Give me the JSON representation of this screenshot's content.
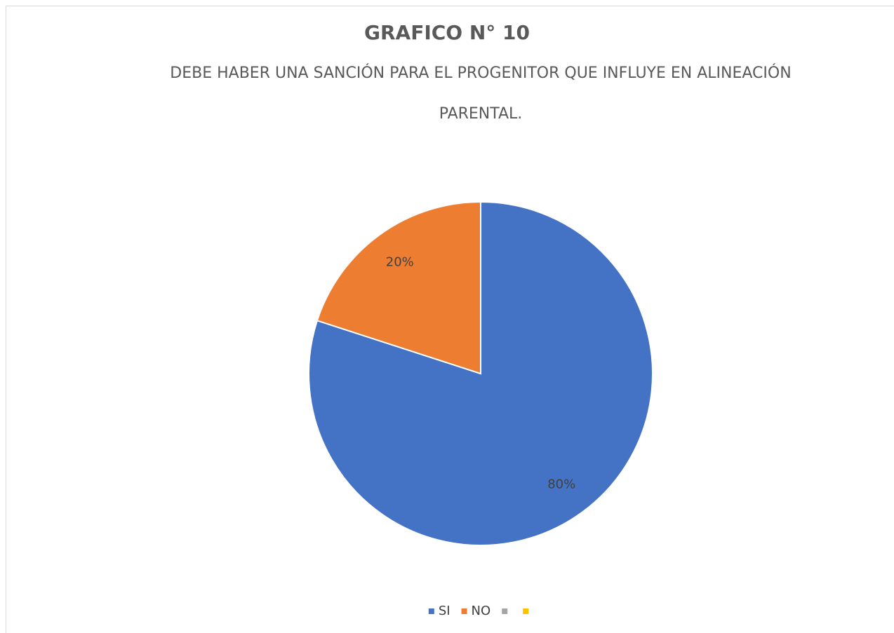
{
  "chart_data": {
    "type": "pie",
    "title": "GRAFICO N° 10",
    "subtitle": "DEBE HABER UNA SANCIÓN PARA EL PROGENITOR QUE INFLUYE EN ALINEACIÓN PARENTAL.",
    "categories": [
      "SI",
      "NO",
      null,
      null
    ],
    "values": [
      80,
      20,
      null,
      null
    ],
    "value_labels": [
      "80%",
      "20%",
      null,
      null
    ],
    "colors": [
      "#4472c4",
      "#ed7d31",
      "#a5a5a5",
      "#ffc000"
    ],
    "legend": "bottom"
  }
}
